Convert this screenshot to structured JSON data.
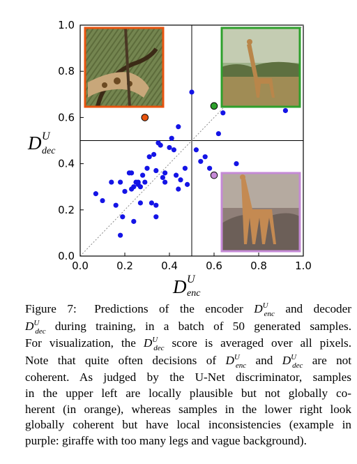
{
  "chart_data": {
    "type": "scatter",
    "xlim": [
      0.0,
      1.0
    ],
    "ylim": [
      0.0,
      1.0
    ],
    "x_ticks": [
      "0.0",
      "0.2",
      "0.4",
      "0.6",
      "0.8",
      "1.0"
    ],
    "y_ticks": [
      "0.0",
      "0.2",
      "0.4",
      "0.6",
      "0.8",
      "1.0"
    ],
    "xlabel": {
      "base": "D",
      "sup": "U",
      "sub": "enc"
    },
    "ylabel": {
      "base": "D",
      "sup": "U",
      "sub": "dec"
    },
    "reference_lines": {
      "vertical_x": 0.5,
      "horizontal_y": 0.5,
      "diagonal": "y = x (dotted)"
    },
    "grid": false,
    "point_color": "#1414e6",
    "points": [
      [
        0.07,
        0.27
      ],
      [
        0.1,
        0.24
      ],
      [
        0.14,
        0.32
      ],
      [
        0.16,
        0.22
      ],
      [
        0.18,
        0.32
      ],
      [
        0.2,
        0.28
      ],
      [
        0.22,
        0.36
      ],
      [
        0.23,
        0.36
      ],
      [
        0.24,
        0.3
      ],
      [
        0.25,
        0.32
      ],
      [
        0.26,
        0.31
      ],
      [
        0.27,
        0.3
      ],
      [
        0.26,
        0.32
      ],
      [
        0.27,
        0.23
      ],
      [
        0.28,
        0.35
      ],
      [
        0.3,
        0.38
      ],
      [
        0.31,
        0.43
      ],
      [
        0.32,
        0.23
      ],
      [
        0.33,
        0.44
      ],
      [
        0.34,
        0.37
      ],
      [
        0.35,
        0.49
      ],
      [
        0.36,
        0.48
      ],
      [
        0.37,
        0.34
      ],
      [
        0.38,
        0.36
      ],
      [
        0.38,
        0.32
      ],
      [
        0.4,
        0.47
      ],
      [
        0.41,
        0.51
      ],
      [
        0.42,
        0.46
      ],
      [
        0.43,
        0.35
      ],
      [
        0.44,
        0.56
      ],
      [
        0.44,
        0.29
      ],
      [
        0.45,
        0.33
      ],
      [
        0.47,
        0.38
      ],
      [
        0.48,
        0.31
      ],
      [
        0.5,
        0.71
      ],
      [
        0.52,
        0.46
      ],
      [
        0.54,
        0.41
      ],
      [
        0.56,
        0.43
      ],
      [
        0.58,
        0.38
      ],
      [
        0.62,
        0.53
      ],
      [
        0.64,
        0.62
      ],
      [
        0.7,
        0.4
      ],
      [
        0.23,
        0.29
      ],
      [
        0.18,
        0.09
      ],
      [
        0.19,
        0.17
      ],
      [
        0.24,
        0.15
      ],
      [
        0.34,
        0.17
      ],
      [
        0.92,
        0.63
      ],
      [
        0.34,
        0.22
      ],
      [
        0.29,
        0.32
      ]
    ],
    "highlighted_points": [
      {
        "x": 0.29,
        "y": 0.6,
        "color": "#e8540f"
      },
      {
        "x": 0.6,
        "y": 0.65,
        "color": "#2ea02c"
      },
      {
        "x": 0.6,
        "y": 0.35,
        "color": "#c58ad6"
      }
    ],
    "insets": [
      {
        "subject": "close-up of giraffe necks among branches",
        "frame_color": "#e8540f"
      },
      {
        "subject": "giraffe standing in savanna",
        "frame_color": "#2ea02c"
      },
      {
        "subject": "giraffe with too many legs, vague background",
        "frame_color": "#c58ad6"
      }
    ]
  },
  "caption": {
    "figure_label": "Figure 7:",
    "parts": {
      "t1": "Predictions of the encoder",
      "t2": "and decoder",
      "t3": "during training, in a batch of 50 generated samples.",
      "t4": "For visualization, the",
      "t5": "score is averaged over all pixels.",
      "t6": "Note that quite often decisions of",
      "t7": "and",
      "t8": "are not",
      "t9": "coherent.  As judged by the U-Net discriminator, samples",
      "t10": "in the upper left are locally plausible but not globally co-",
      "t11": "herent (in orange), whereas samples in the lower right look",
      "t12": "globally coherent but have local inconsistencies (example in",
      "t13": "purple: giraffe with too many legs and vague background)."
    },
    "math": {
      "base": "D",
      "sup": "U",
      "enc": "enc",
      "dec": "dec"
    }
  }
}
